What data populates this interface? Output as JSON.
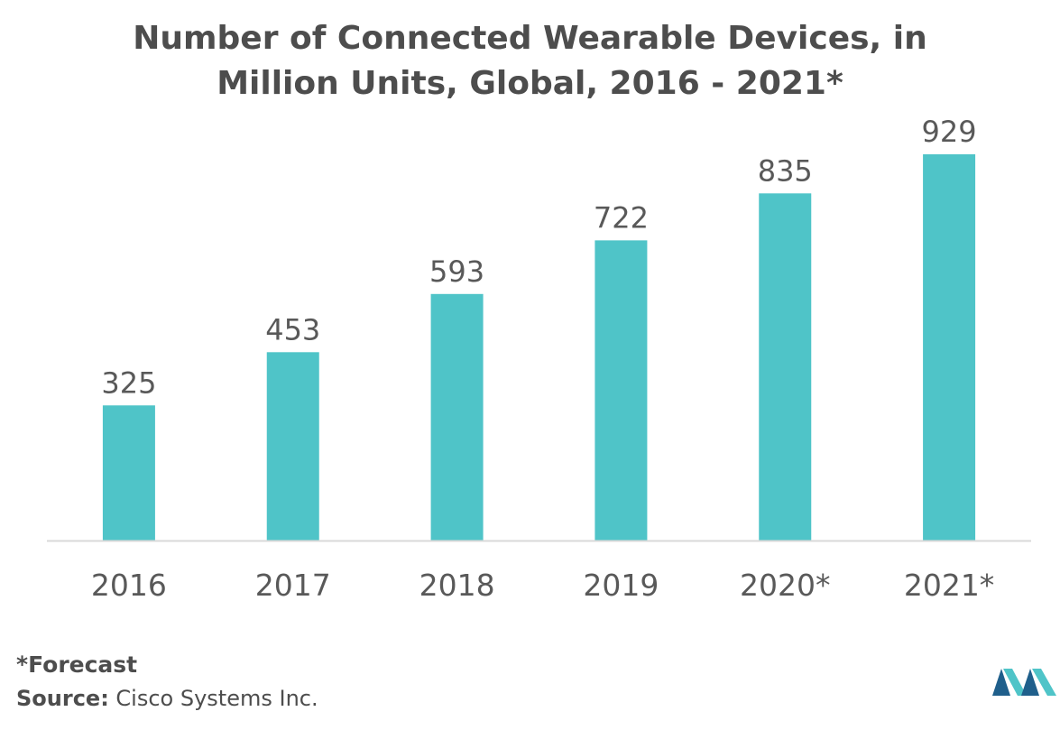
{
  "chart_data": {
    "type": "bar",
    "title_line1": "Number of Connected Wearable Devices, in",
    "title_line2": "Million Units, Global, 2016 - 2021*",
    "categories": [
      "2016",
      "2017",
      "2018",
      "2019",
      "2020*",
      "2021*"
    ],
    "values": [
      325,
      453,
      593,
      722,
      835,
      929
    ],
    "data_labels": [
      "325",
      "453",
      "593",
      "722",
      "835",
      "929"
    ],
    "xlabel": "",
    "ylabel": "",
    "ylim": [
      0,
      929
    ],
    "grid": false,
    "legend": "none",
    "bar_color": "#4fc4c8",
    "axis_color": "#d9d9d9"
  },
  "footer": {
    "forecast_note": "*Forecast",
    "source_label": "Source:",
    "source_text": " Cisco Systems Inc."
  },
  "logo": {
    "icon": "mordor-intelligence-logo",
    "colors": [
      "#1f5f8b",
      "#4fc4c8"
    ]
  }
}
